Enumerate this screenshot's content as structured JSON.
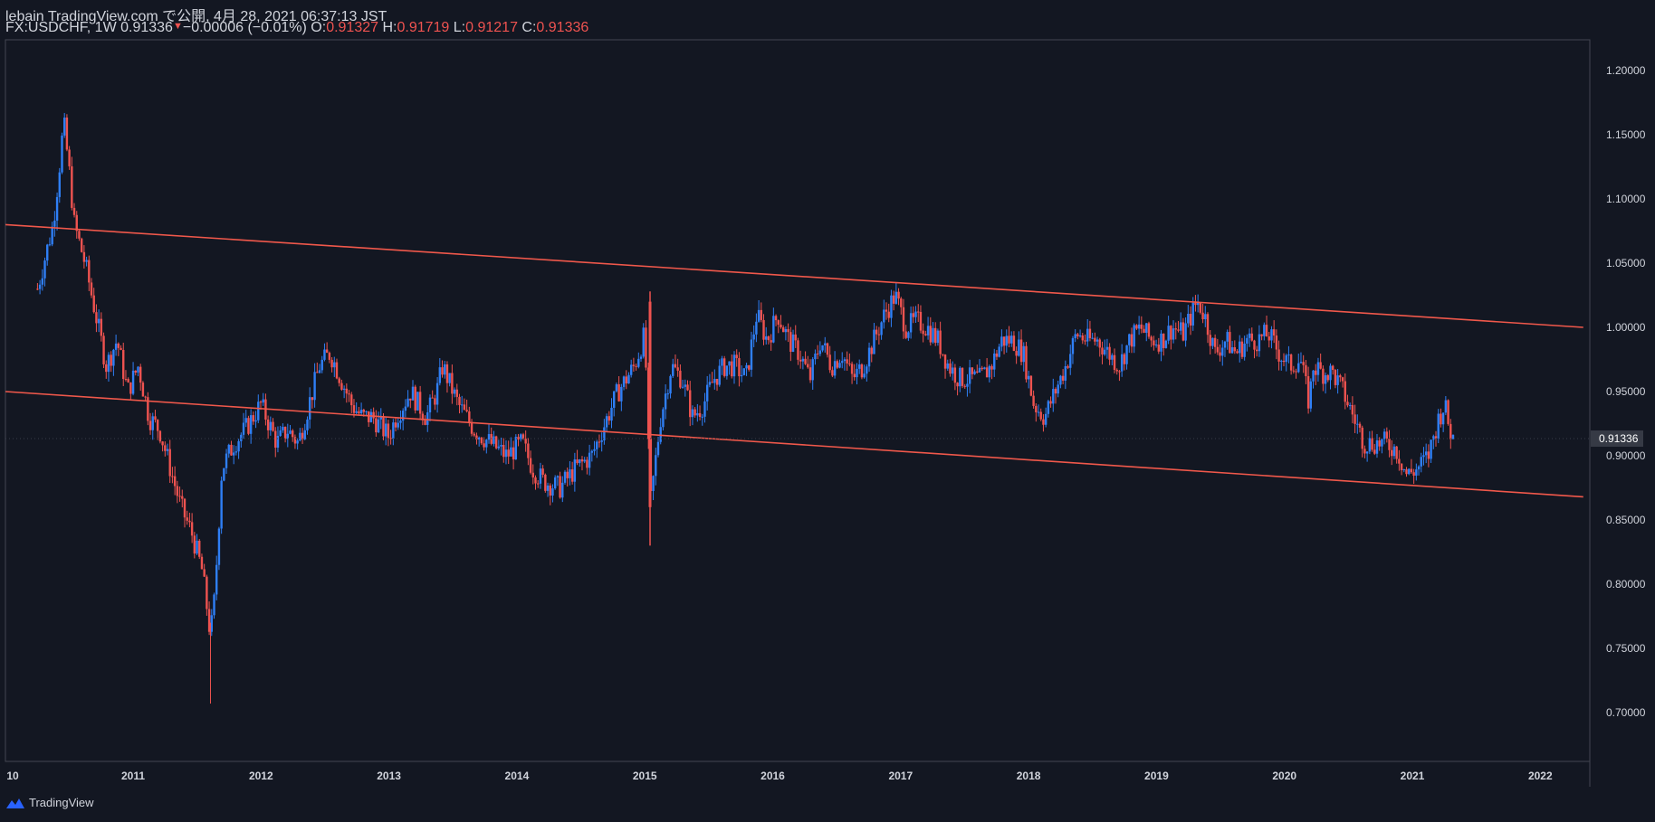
{
  "header": {
    "line1": "lebain TradingView.com で公開, 4月 28, 2021 06:37:13 JST",
    "symbol": "FX:USDCHF, 1W 0.91336",
    "change": "−0.00006 (−0.01%)",
    "o_label": "O:",
    "o_value": "0.91327",
    "h_label": "H:",
    "h_value": "0.91719",
    "l_label": "L:",
    "l_value": "0.91217",
    "c_label": "C:",
    "c_value": "0.91336"
  },
  "footer": {
    "brand": "TradingView",
    "icon": "tradingview-logo-icon"
  },
  "colors": {
    "background": "#131722",
    "up": "#2f7ff6",
    "down": "#ef5350",
    "trendline": "#f0584b",
    "axis_text": "#d1d4dc",
    "grid_border": "#434651"
  },
  "chart_data": {
    "type": "candlestick",
    "symbol": "FX:USDCHF",
    "interval": "1W",
    "ylim": [
      0.655,
      1.225
    ],
    "y_ticks": [
      "1.20000",
      "1.15000",
      "1.10000",
      "1.05000",
      "1.00000",
      "0.95000",
      "0.90000",
      "0.85000",
      "0.80000",
      "0.75000",
      "0.70000"
    ],
    "x_ticks": [
      "10",
      "2011",
      "2012",
      "2013",
      "2014",
      "2015",
      "2016",
      "2017",
      "2018",
      "2019",
      "2020",
      "2021",
      "2022"
    ],
    "last_price_label": "0.91336",
    "last_price": 0.91336,
    "price_path": [
      [
        "2010-04-01",
        1.03
      ],
      [
        "2010-05-15",
        1.08
      ],
      [
        "2010-06-01",
        1.12
      ],
      [
        "2010-06-15",
        1.16
      ],
      [
        "2010-07-01",
        1.12
      ],
      [
        "2010-07-15",
        1.08
      ],
      [
        "2010-08-15",
        1.05
      ],
      [
        "2010-09-15",
        1.01
      ],
      [
        "2010-10-15",
        0.97
      ],
      [
        "2010-11-15",
        0.99
      ],
      [
        "2010-12-15",
        0.95
      ],
      [
        "2011-01-15",
        0.97
      ],
      [
        "2011-02-15",
        0.93
      ],
      [
        "2011-03-15",
        0.92
      ],
      [
        "2011-04-15",
        0.89
      ],
      [
        "2011-05-15",
        0.86
      ],
      [
        "2011-06-15",
        0.84
      ],
      [
        "2011-07-15",
        0.81
      ],
      [
        "2011-08-08",
        0.76
      ],
      [
        "2011-08-20",
        0.79
      ],
      [
        "2011-09-10",
        0.89
      ],
      [
        "2011-10-15",
        0.91
      ],
      [
        "2011-11-15",
        0.92
      ],
      [
        "2011-12-30",
        0.94
      ],
      [
        "2012-01-15",
        0.93
      ],
      [
        "2012-02-15",
        0.91
      ],
      [
        "2012-03-15",
        0.92
      ],
      [
        "2012-04-15",
        0.91
      ],
      [
        "2012-05-15",
        0.94
      ],
      [
        "2012-06-15",
        0.97
      ],
      [
        "2012-07-15",
        0.98
      ],
      [
        "2012-08-15",
        0.96
      ],
      [
        "2012-09-15",
        0.94
      ],
      [
        "2012-10-15",
        0.93
      ],
      [
        "2012-11-15",
        0.93
      ],
      [
        "2012-12-30",
        0.915
      ],
      [
        "2013-01-20",
        0.93
      ],
      [
        "2013-03-01",
        0.95
      ],
      [
        "2013-04-15",
        0.93
      ],
      [
        "2013-05-15",
        0.95
      ],
      [
        "2013-06-01",
        0.97
      ],
      [
        "2013-07-15",
        0.94
      ],
      [
        "2013-09-01",
        0.92
      ],
      [
        "2013-10-15",
        0.91
      ],
      [
        "2013-12-01",
        0.9
      ],
      [
        "2014-01-15",
        0.91
      ],
      [
        "2014-02-15",
        0.89
      ],
      [
        "2014-03-15",
        0.88
      ],
      [
        "2014-05-01",
        0.875
      ],
      [
        "2014-06-15",
        0.89
      ],
      [
        "2014-08-01",
        0.9
      ],
      [
        "2014-09-15",
        0.93
      ],
      [
        "2014-10-15",
        0.95
      ],
      [
        "2014-12-01",
        0.97
      ],
      [
        "2014-12-31",
        0.995
      ],
      [
        "2015-01-15",
        0.86
      ],
      [
        "2015-02-15",
        0.93
      ],
      [
        "2015-03-15",
        0.97
      ],
      [
        "2015-04-15",
        0.96
      ],
      [
        "2015-05-15",
        0.93
      ],
      [
        "2015-06-15",
        0.94
      ],
      [
        "2015-07-15",
        0.96
      ],
      [
        "2015-08-15",
        0.97
      ],
      [
        "2015-09-15",
        0.97
      ],
      [
        "2015-10-15",
        0.96
      ],
      [
        "2015-11-15",
        1.01
      ],
      [
        "2015-12-15",
        0.99
      ],
      [
        "2016-01-15",
        1.01
      ],
      [
        "2016-02-15",
        0.99
      ],
      [
        "2016-03-15",
        0.98
      ],
      [
        "2016-04-15",
        0.96
      ],
      [
        "2016-05-15",
        0.99
      ],
      [
        "2016-06-15",
        0.97
      ],
      [
        "2016-07-15",
        0.98
      ],
      [
        "2016-08-15",
        0.96
      ],
      [
        "2016-09-15",
        0.97
      ],
      [
        "2016-10-15",
        0.99
      ],
      [
        "2016-11-15",
        1.01
      ],
      [
        "2016-12-15",
        1.025
      ],
      [
        "2017-01-15",
        1.0
      ],
      [
        "2017-02-15",
        1.005
      ],
      [
        "2017-03-15",
        1.0
      ],
      [
        "2017-04-15",
        0.99
      ],
      [
        "2017-05-15",
        0.97
      ],
      [
        "2017-06-15",
        0.96
      ],
      [
        "2017-07-15",
        0.96
      ],
      [
        "2017-08-15",
        0.96
      ],
      [
        "2017-09-15",
        0.97
      ],
      [
        "2017-10-15",
        0.99
      ],
      [
        "2017-11-15",
        0.99
      ],
      [
        "2017-12-15",
        0.98
      ],
      [
        "2018-01-15",
        0.94
      ],
      [
        "2018-02-15",
        0.93
      ],
      [
        "2018-03-15",
        0.95
      ],
      [
        "2018-04-15",
        0.97
      ],
      [
        "2018-05-15",
        0.995
      ],
      [
        "2018-06-15",
        0.99
      ],
      [
        "2018-07-15",
        0.99
      ],
      [
        "2018-08-15",
        0.98
      ],
      [
        "2018-09-15",
        0.97
      ],
      [
        "2018-10-15",
        0.99
      ],
      [
        "2018-11-15",
        1.0
      ],
      [
        "2018-12-15",
        0.99
      ],
      [
        "2019-01-15",
        0.99
      ],
      [
        "2019-02-15",
        1.0
      ],
      [
        "2019-03-15",
        0.995
      ],
      [
        "2019-04-25",
        1.02
      ],
      [
        "2019-05-15",
        1.01
      ],
      [
        "2019-06-15",
        0.98
      ],
      [
        "2019-07-15",
        0.99
      ],
      [
        "2019-08-15",
        0.98
      ],
      [
        "2019-09-15",
        0.99
      ],
      [
        "2019-10-15",
        0.99
      ],
      [
        "2019-11-15",
        0.995
      ],
      [
        "2019-12-15",
        0.98
      ],
      [
        "2020-01-15",
        0.97
      ],
      [
        "2020-02-15",
        0.975
      ],
      [
        "2020-03-10",
        0.94
      ],
      [
        "2020-03-20",
        0.97
      ],
      [
        "2020-04-15",
        0.965
      ],
      [
        "2020-05-15",
        0.965
      ],
      [
        "2020-06-15",
        0.95
      ],
      [
        "2020-07-15",
        0.93
      ],
      [
        "2020-08-15",
        0.91
      ],
      [
        "2020-09-15",
        0.91
      ],
      [
        "2020-10-15",
        0.91
      ],
      [
        "2020-11-15",
        0.905
      ],
      [
        "2020-12-15",
        0.885
      ],
      [
        "2021-01-15",
        0.89
      ],
      [
        "2021-02-15",
        0.9
      ],
      [
        "2021-03-15",
        0.93
      ],
      [
        "2021-03-31",
        0.94
      ],
      [
        "2021-04-15",
        0.92
      ],
      [
        "2021-04-26",
        0.91336
      ]
    ],
    "trendlines": [
      {
        "name": "upper",
        "from": [
          "2010-01-01",
          1.08
        ],
        "to": [
          "2022-05-01",
          1.0
        ]
      },
      {
        "name": "lower",
        "from": [
          "2010-01-01",
          0.95
        ],
        "to": [
          "2022-05-01",
          0.868
        ]
      }
    ]
  }
}
